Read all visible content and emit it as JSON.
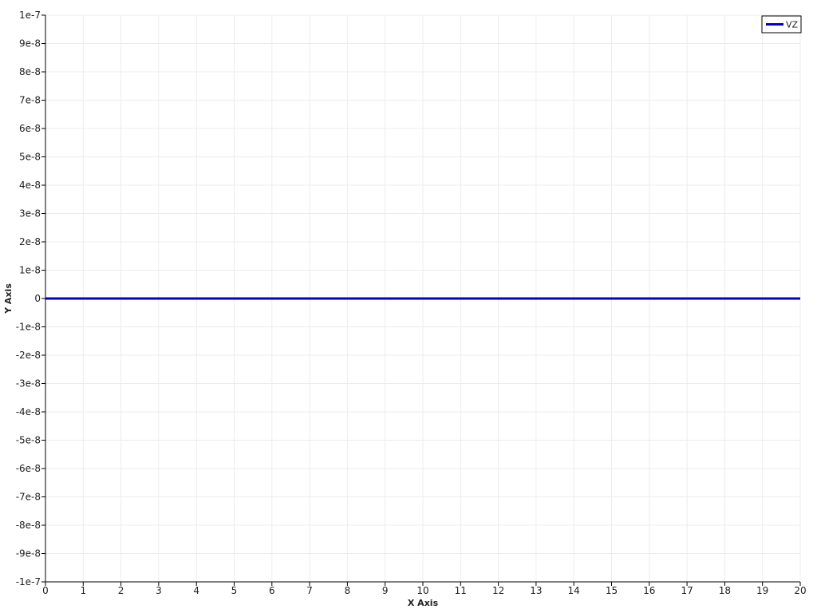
{
  "chart_data": {
    "type": "line",
    "xlabel": "X Axis",
    "ylabel": "Y Axis",
    "xlim": [
      0,
      20
    ],
    "ylim": [
      -1e-07,
      1e-07
    ],
    "x_ticks": [
      0,
      1,
      2,
      3,
      4,
      5,
      6,
      7,
      8,
      9,
      10,
      11,
      12,
      13,
      14,
      15,
      16,
      17,
      18,
      19,
      20
    ],
    "x_tick_labels": [
      "0",
      "1",
      "2",
      "3",
      "4",
      "5",
      "6",
      "7",
      "8",
      "9",
      "10",
      "11",
      "12",
      "13",
      "14",
      "15",
      "16",
      "17",
      "18",
      "19",
      "20"
    ],
    "y_ticks": [
      1e-07,
      9e-08,
      8e-08,
      7e-08,
      6e-08,
      5e-08,
      4e-08,
      3e-08,
      2e-08,
      1e-08,
      0,
      -1e-08,
      -2e-08,
      -3e-08,
      -4e-08,
      -5e-08,
      -6e-08,
      -7e-08,
      -8e-08,
      -9e-08,
      -1e-07
    ],
    "y_tick_labels": [
      "1e-7",
      "9e-8",
      "8e-8",
      "7e-8",
      "6e-8",
      "5e-8",
      "4e-8",
      "3e-8",
      "2e-8",
      "1e-8",
      "0",
      "-1e-8",
      "-2e-8",
      "-3e-8",
      "-4e-8",
      "-5e-8",
      "-6e-8",
      "-7e-8",
      "-8e-8",
      "-9e-8",
      "-1e-7"
    ],
    "grid": true,
    "legend_position": "top-right",
    "series": [
      {
        "name": "VZ",
        "color": "#0000cc",
        "x": [
          0,
          20
        ],
        "y": [
          0,
          0
        ]
      }
    ]
  }
}
